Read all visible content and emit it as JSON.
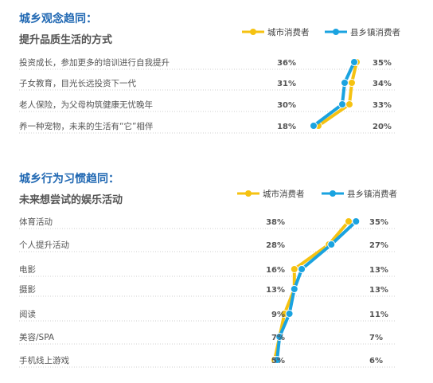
{
  "colors": {
    "city": "#f5c211",
    "county": "#1aa3e0",
    "heading": "#1f67b2",
    "text": "#555555",
    "divider": "#cfcfcf"
  },
  "legend": {
    "city": "城市消费者",
    "county": "县乡镇消费者"
  },
  "chart_data": [
    {
      "type": "line",
      "section_title": "城乡观念趋同：",
      "title": "提升品质生活的方式",
      "categories": [
        "投资成长，参加更多的培训进行自我提升",
        "子女教育，目光长远投资下一代",
        "老人保险，为父母构筑健康无忧晚年",
        "养一种宠物，未来的生活有“它”相伴"
      ],
      "series": [
        {
          "name": "城市消费者",
          "key": "city",
          "values": [
            36,
            34,
            33,
            20
          ]
        },
        {
          "name": "县乡镇消费者",
          "key": "county",
          "values": [
            35,
            31,
            30,
            18
          ]
        }
      ],
      "labels": {
        "left": [
          "36%",
          "31%",
          "30%",
          "18%"
        ],
        "right": [
          "35%",
          "34%",
          "33%",
          "20%"
        ]
      }
    },
    {
      "type": "line",
      "section_title": "城乡行为习惯趋同：",
      "title": "未来想尝试的娱乐活动",
      "categories": [
        "体育活动",
        "个人提升活动",
        "电影",
        "摄影",
        "阅读",
        "美容/SPA",
        "手机线上游戏"
      ],
      "series": [
        {
          "name": "城市消费者",
          "key": "city",
          "values": [
            35,
            27,
            13,
            13,
            9,
            7,
            5
          ]
        },
        {
          "name": "县乡镇消费者",
          "key": "county",
          "values": [
            38,
            28,
            16,
            13,
            11,
            7,
            6
          ]
        }
      ],
      "labels": {
        "left": [
          "38%",
          "28%",
          "16%",
          "13%",
          "9%",
          "7%",
          "5%"
        ],
        "right": [
          "35%",
          "27%",
          "13%",
          "13%",
          "11%",
          "7%",
          "6%"
        ]
      }
    }
  ]
}
